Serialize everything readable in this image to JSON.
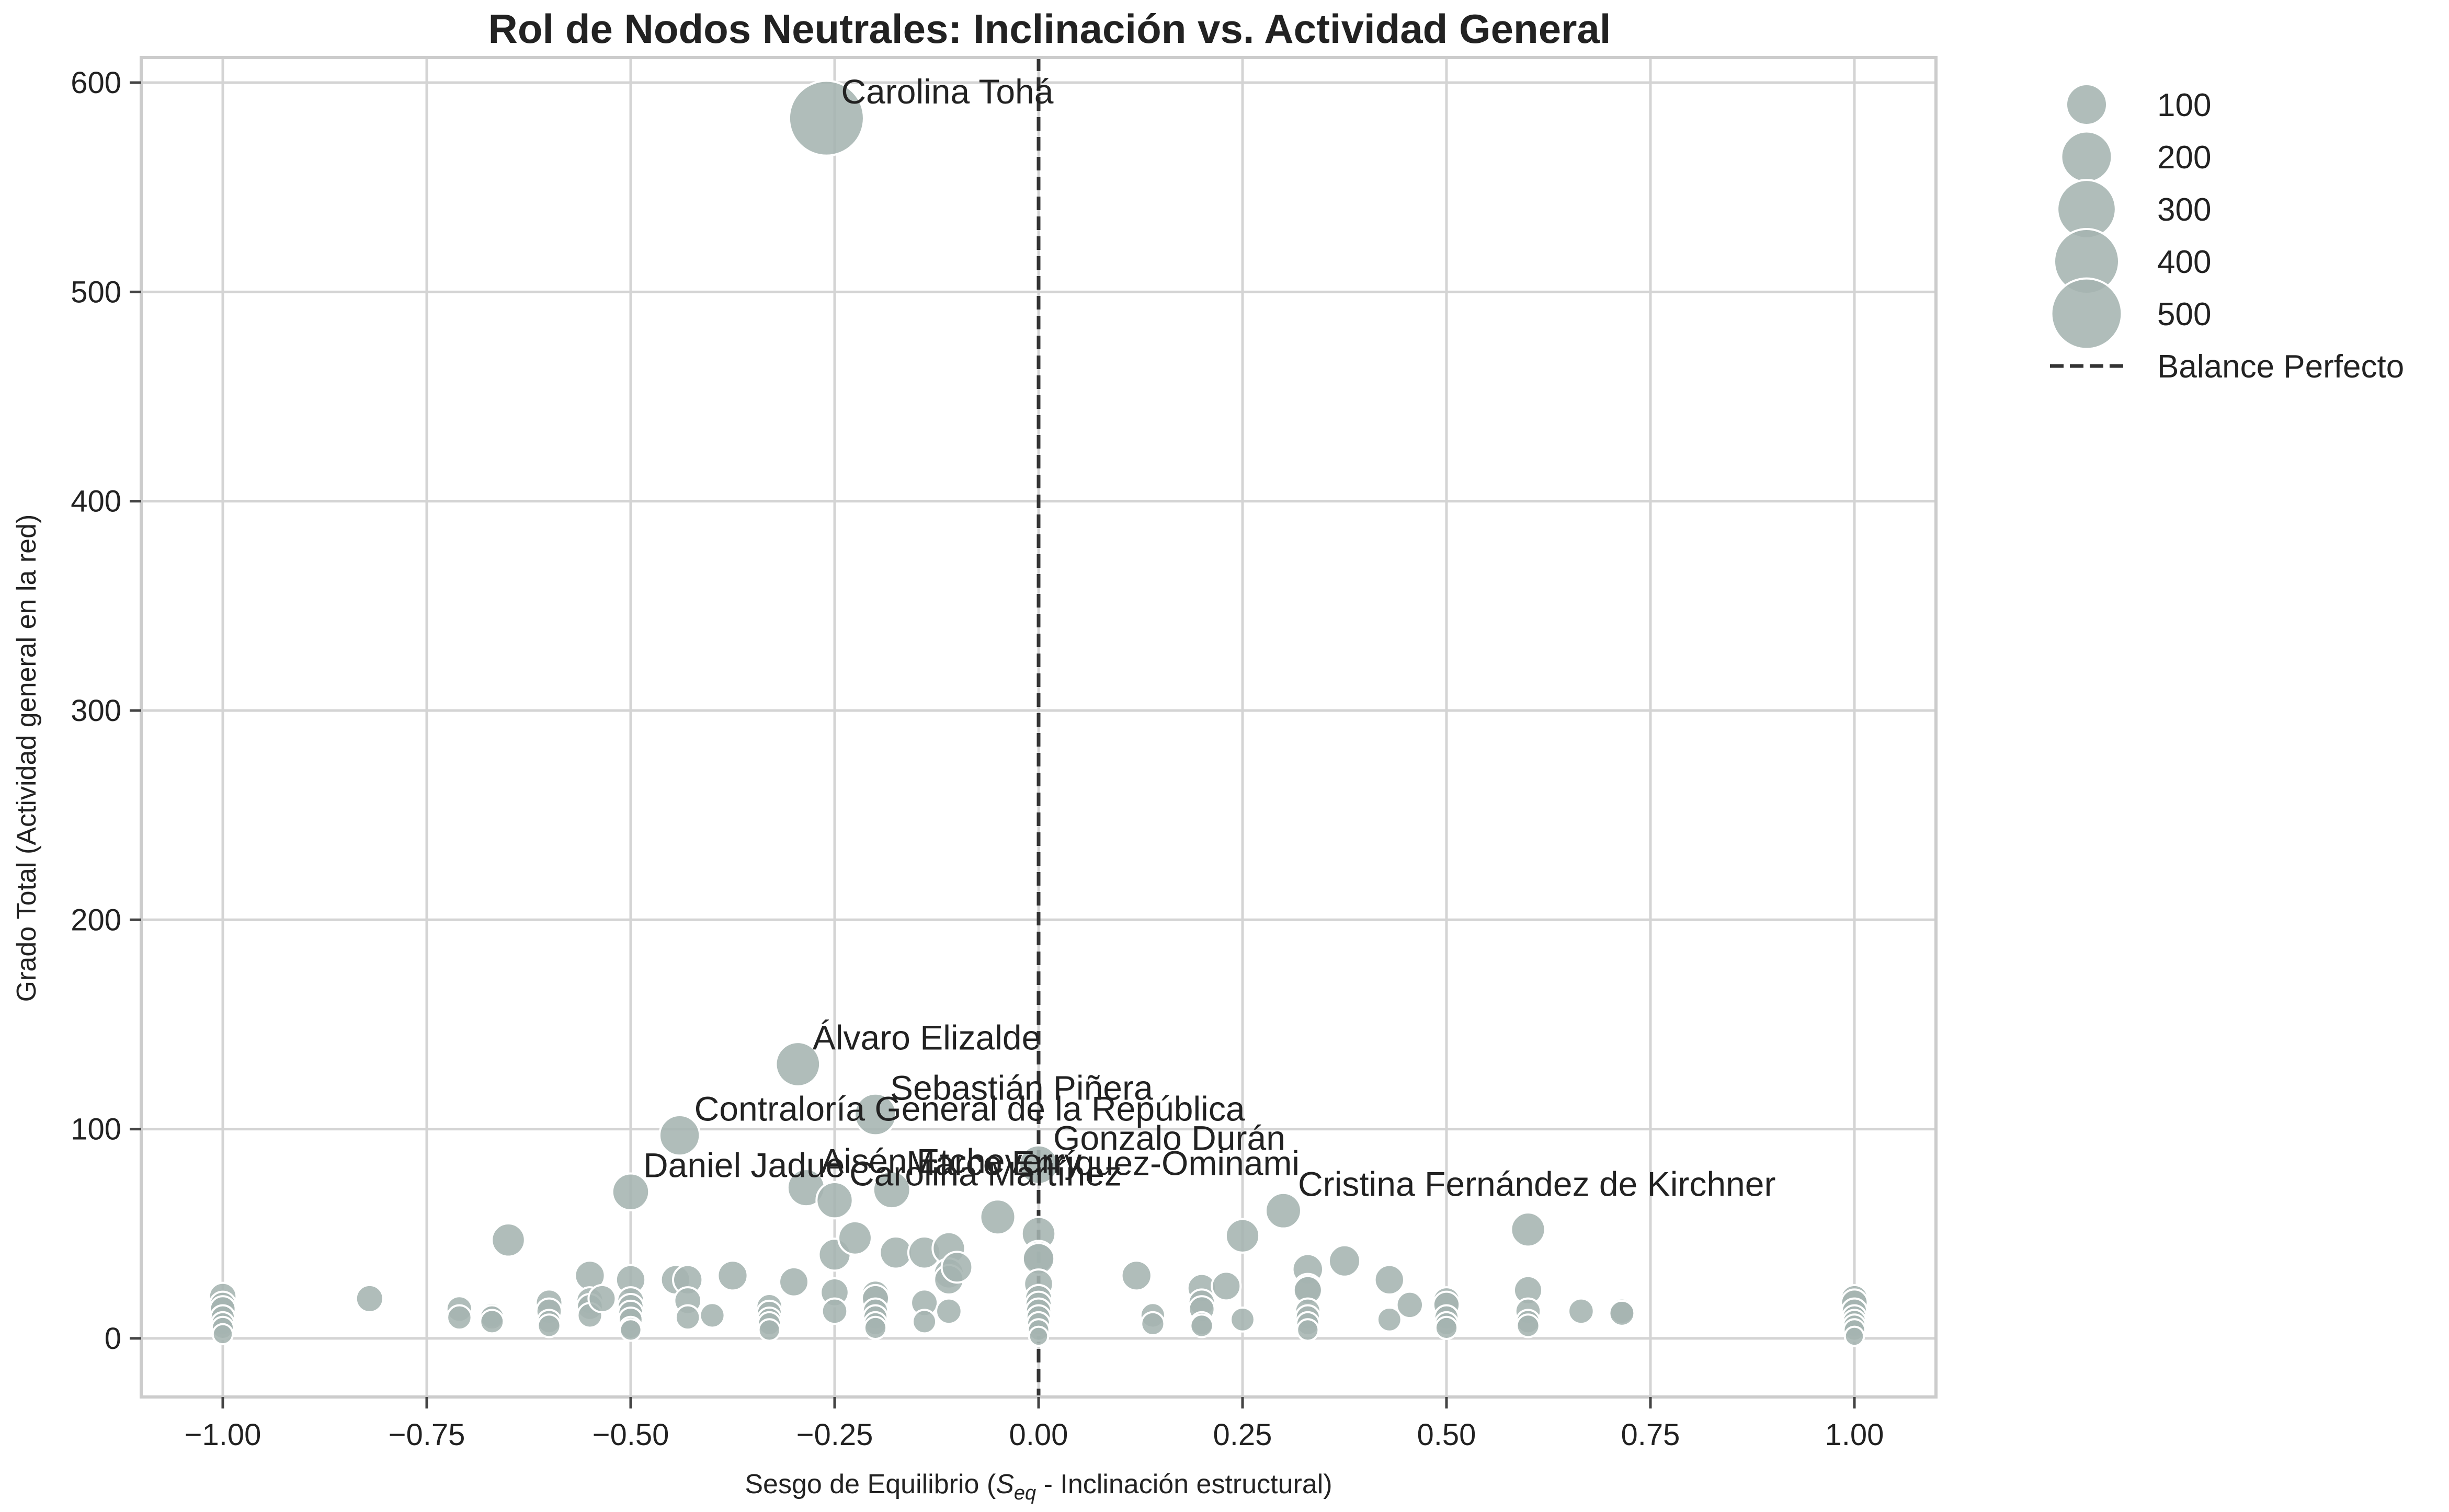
{
  "chart_data": {
    "type": "scatter",
    "title": "Rol de Nodos Neutrales: Inclinación vs. Actividad General",
    "xlabel": "Sesgo de Equilibrio (S_eq - Inclinación estructural)",
    "xlabel_parts": {
      "before": "Sesgo de Equilibrio (",
      "var": "S",
      "sub": "eq",
      "after": " - Inclinación estructural)"
    },
    "ylabel": "Grado Total (Actividad general en la red)",
    "xlim": [
      -1.1,
      1.1
    ],
    "ylim": [
      -28,
      612
    ],
    "xticks": [
      -1.0,
      -0.75,
      -0.5,
      -0.25,
      0.0,
      0.25,
      0.5,
      0.75,
      1.0
    ],
    "xtick_labels": [
      "−1.00",
      "−0.75",
      "−0.50",
      "−0.25",
      "0.00",
      "0.25",
      "0.50",
      "0.75",
      "1.00"
    ],
    "yticks": [
      0,
      100,
      200,
      300,
      400,
      500,
      600
    ],
    "ytick_labels": [
      "0",
      "100",
      "200",
      "300",
      "400",
      "500",
      "600"
    ],
    "grid": true,
    "marker_color": "#a5b4b1",
    "marker_edge_color": "#ffffff",
    "size_encoding": "Grado Total",
    "reference_line": {
      "x": 0.0,
      "style": "dashed",
      "color": "#333333",
      "label": "Balance Perfecto"
    },
    "legend": {
      "placement": "outside-top-right",
      "size_entries": [
        {
          "label": "100",
          "value": 100
        },
        {
          "label": "200",
          "value": 200
        },
        {
          "label": "300",
          "value": 300
        },
        {
          "label": "400",
          "value": 400
        },
        {
          "label": "500",
          "value": 500
        }
      ],
      "line_entry": "Balance Perfecto"
    },
    "annotated_points": [
      {
        "name": "Carolina Tohá",
        "x": -0.26,
        "y": 583
      },
      {
        "name": "Álvaro Elizalde",
        "x": -0.295,
        "y": 131
      },
      {
        "name": "Sebastián Piñera",
        "x": -0.2,
        "y": 107
      },
      {
        "name": "Contraloría General de la República",
        "x": -0.44,
        "y": 97
      },
      {
        "name": "Gonzalo Durán",
        "x": 0.0,
        "y": 83
      },
      {
        "name": "Daniel Jadue",
        "x": -0.5,
        "y": 70
      },
      {
        "name": "Aisén Etcheverry",
        "x": -0.285,
        "y": 72
      },
      {
        "name": "Carolina Martínez",
        "x": -0.25,
        "y": 66
      },
      {
        "name": "Marco Enríquez-Ominami",
        "x": -0.18,
        "y": 71
      },
      {
        "name": "Cristina Fernández de Kirchner",
        "x": 0.3,
        "y": 61
      }
    ],
    "points": [
      [
        -1.0,
        20
      ],
      [
        -1.0,
        16
      ],
      [
        -1.0,
        14
      ],
      [
        -1.0,
        10
      ],
      [
        -1.0,
        7
      ],
      [
        -1.0,
        5
      ],
      [
        -1.0,
        2
      ],
      [
        -0.82,
        19
      ],
      [
        -0.71,
        14
      ],
      [
        -0.71,
        10
      ],
      [
        -0.67,
        11
      ],
      [
        -0.67,
        10
      ],
      [
        -0.67,
        8
      ],
      [
        -0.65,
        47
      ],
      [
        -0.6,
        17
      ],
      [
        -0.6,
        13
      ],
      [
        -0.6,
        8
      ],
      [
        -0.6,
        6
      ],
      [
        -0.55,
        30
      ],
      [
        -0.55,
        18
      ],
      [
        -0.55,
        15
      ],
      [
        -0.55,
        11
      ],
      [
        -0.535,
        19
      ],
      [
        -0.5,
        28
      ],
      [
        -0.5,
        18
      ],
      [
        -0.5,
        15
      ],
      [
        -0.5,
        12
      ],
      [
        -0.5,
        9
      ],
      [
        -0.5,
        5
      ],
      [
        -0.5,
        4
      ],
      [
        -0.445,
        28
      ],
      [
        -0.43,
        28
      ],
      [
        -0.43,
        18
      ],
      [
        -0.43,
        10
      ],
      [
        -0.4,
        11
      ],
      [
        -0.375,
        30
      ],
      [
        -0.33,
        15
      ],
      [
        -0.33,
        12
      ],
      [
        -0.33,
        9
      ],
      [
        -0.33,
        7
      ],
      [
        -0.33,
        4
      ],
      [
        -0.3,
        27
      ],
      [
        -0.25,
        40
      ],
      [
        -0.25,
        22
      ],
      [
        -0.25,
        13
      ],
      [
        -0.225,
        48
      ],
      [
        -0.2,
        21
      ],
      [
        -0.2,
        19
      ],
      [
        -0.2,
        13
      ],
      [
        -0.2,
        10
      ],
      [
        -0.2,
        7
      ],
      [
        -0.2,
        5
      ],
      [
        -0.175,
        41
      ],
      [
        -0.14,
        41
      ],
      [
        -0.14,
        17
      ],
      [
        -0.14,
        8
      ],
      [
        -0.11,
        43
      ],
      [
        -0.11,
        31
      ],
      [
        -0.11,
        28
      ],
      [
        -0.11,
        13
      ],
      [
        -0.1,
        34
      ],
      [
        -0.05,
        58
      ],
      [
        0.0,
        50
      ],
      [
        0.0,
        39
      ],
      [
        0.0,
        38
      ],
      [
        0.0,
        26
      ],
      [
        0.0,
        19
      ],
      [
        0.0,
        16
      ],
      [
        0.0,
        13
      ],
      [
        0.0,
        10
      ],
      [
        0.0,
        7
      ],
      [
        0.0,
        4
      ],
      [
        0.0,
        1
      ],
      [
        0.12,
        30
      ],
      [
        0.14,
        11
      ],
      [
        0.14,
        7
      ],
      [
        0.2,
        24
      ],
      [
        0.2,
        17
      ],
      [
        0.2,
        14
      ],
      [
        0.2,
        7
      ],
      [
        0.2,
        6
      ],
      [
        0.23,
        25
      ],
      [
        0.25,
        49
      ],
      [
        0.25,
        9
      ],
      [
        0.33,
        33
      ],
      [
        0.33,
        24
      ],
      [
        0.33,
        23
      ],
      [
        0.33,
        13
      ],
      [
        0.33,
        10
      ],
      [
        0.33,
        7
      ],
      [
        0.33,
        4
      ],
      [
        0.375,
        37
      ],
      [
        0.43,
        28
      ],
      [
        0.43,
        9
      ],
      [
        0.455,
        16
      ],
      [
        0.5,
        18
      ],
      [
        0.5,
        16
      ],
      [
        0.5,
        10
      ],
      [
        0.5,
        7
      ],
      [
        0.5,
        5
      ],
      [
        0.6,
        52
      ],
      [
        0.6,
        23
      ],
      [
        0.6,
        13
      ],
      [
        0.6,
        8
      ],
      [
        0.6,
        6
      ],
      [
        0.665,
        13
      ],
      [
        0.715,
        13
      ],
      [
        0.715,
        12
      ],
      [
        1.0,
        19
      ],
      [
        1.0,
        17
      ],
      [
        1.0,
        13
      ],
      [
        1.0,
        10
      ],
      [
        1.0,
        8
      ],
      [
        1.0,
        6
      ],
      [
        1.0,
        4
      ],
      [
        1.0,
        1
      ]
    ]
  }
}
